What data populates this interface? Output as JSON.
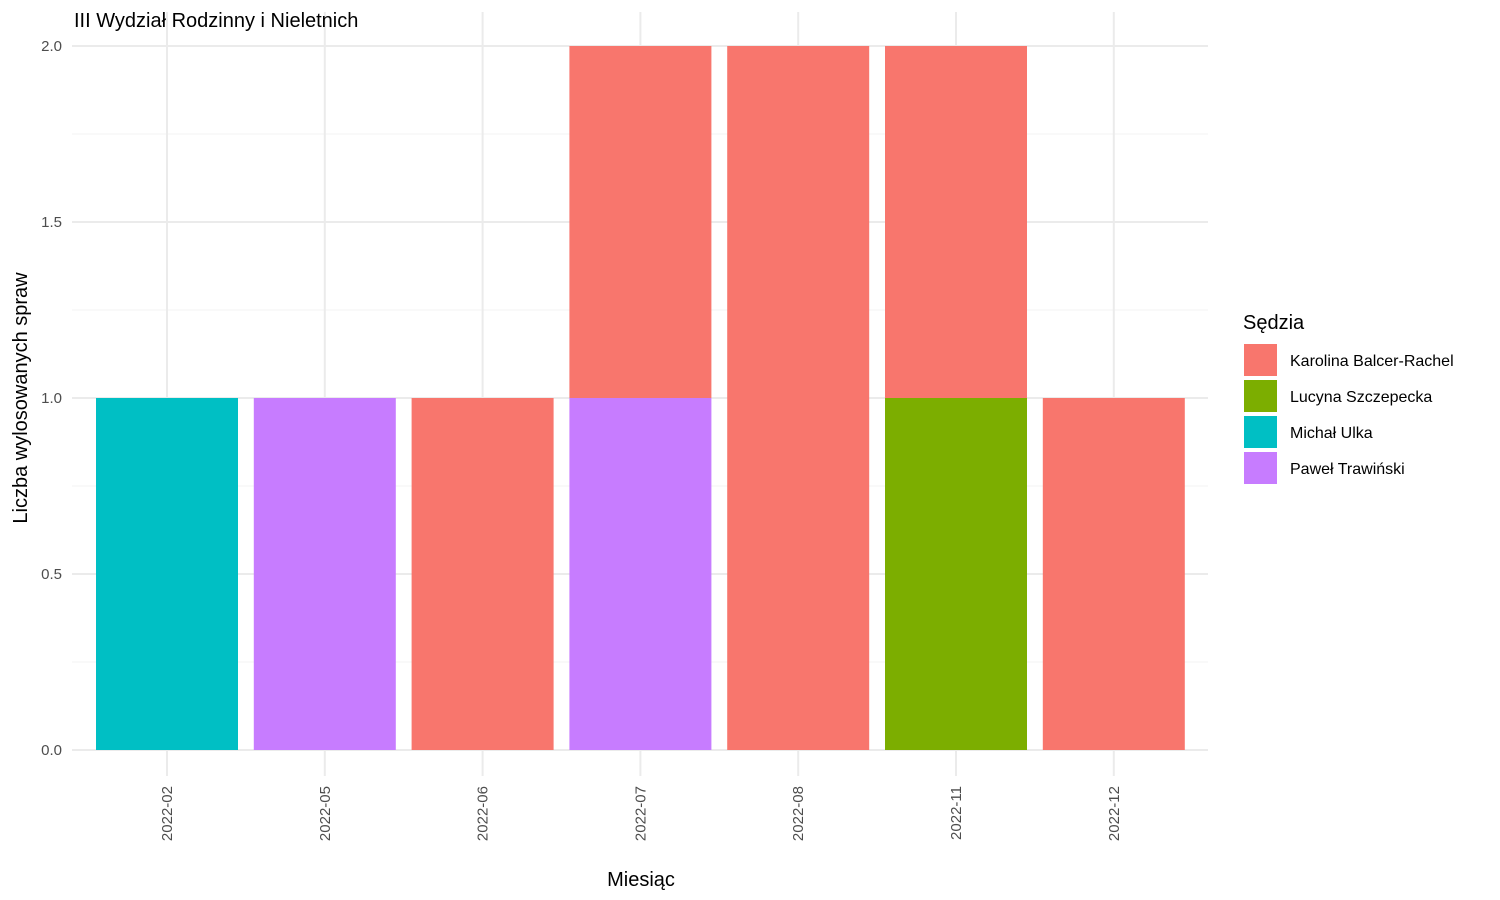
{
  "chart_data": {
    "type": "bar",
    "stacked": true,
    "title": "III Wydział Rodzinny i Nieletnich",
    "xlabel": "Miesiąc",
    "ylabel": "Liczba wylosowanych spraw",
    "ylim": [
      0,
      2
    ],
    "yticks": [
      "0.0",
      "0.5",
      "1.0",
      "1.5",
      "2.0"
    ],
    "grid": true,
    "legend_position": "right",
    "legend_title": "Sędzia",
    "categories": [
      "2022-02",
      "2022-05",
      "2022-06",
      "2022-07",
      "2022-08",
      "2022-11",
      "2022-12"
    ],
    "series": [
      {
        "name": "Karolina Balcer-Rachel",
        "color": "#F8766D",
        "values": [
          0,
          0,
          1,
          1,
          2,
          1,
          1
        ]
      },
      {
        "name": "Lucyna Szczepecka",
        "color": "#7CAE00",
        "values": [
          0,
          0,
          0,
          0,
          0,
          1,
          0
        ]
      },
      {
        "name": "Michał Ulka",
        "color": "#00BFC4",
        "values": [
          1,
          0,
          0,
          0,
          0,
          0,
          0
        ]
      },
      {
        "name": "Paweł Trawiński",
        "color": "#C77CFF",
        "values": [
          0,
          1,
          0,
          1,
          0,
          0,
          0
        ]
      }
    ]
  }
}
